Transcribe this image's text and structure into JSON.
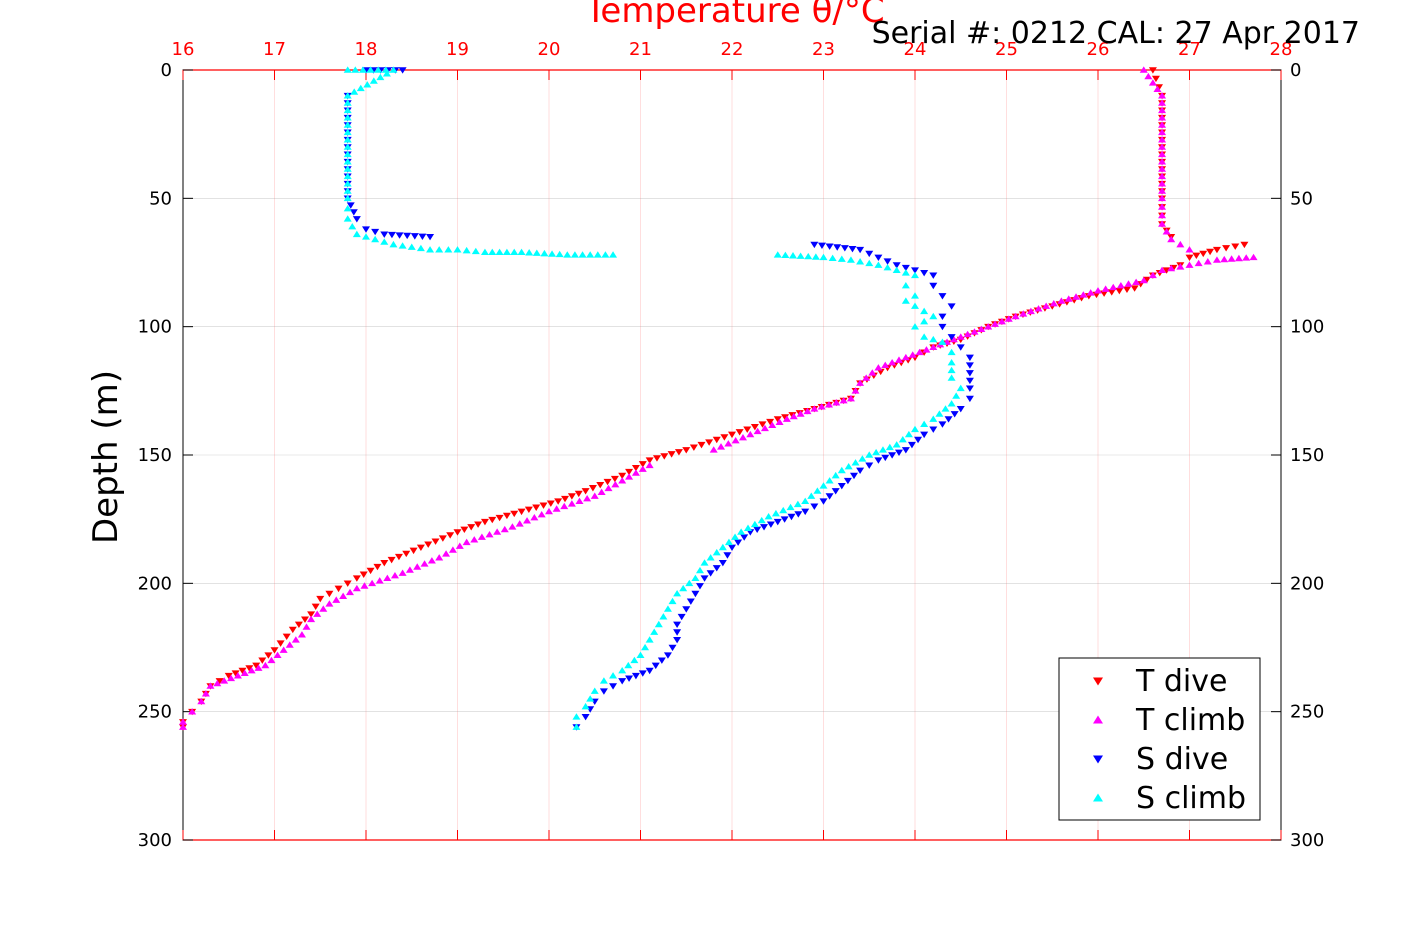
{
  "chart_data": {
    "type": "scatter",
    "title": "Temperature θ/°C",
    "serial_label": "Serial #: 0212  CAL: 27 Apr 2017",
    "ylabel": "Depth (m)",
    "xlabel": "",
    "xlim": [
      16,
      28
    ],
    "ylim": [
      0,
      300
    ],
    "y_reversed": true,
    "x_ticks": [
      16,
      17,
      18,
      19,
      20,
      21,
      22,
      23,
      24,
      25,
      26,
      27,
      28
    ],
    "y_ticks": [
      0,
      50,
      100,
      150,
      200,
      250,
      300
    ],
    "grid": true,
    "legend_position": "bottom-right",
    "series": [
      {
        "name": "T dive",
        "color": "#ff0000",
        "marker": "triangle-down",
        "points": [
          [
            26.6,
            0
          ],
          [
            26.7,
            10
          ],
          [
            26.7,
            30
          ],
          [
            26.7,
            50
          ],
          [
            26.7,
            60
          ],
          [
            26.8,
            65
          ],
          [
            27.6,
            68
          ],
          [
            27.3,
            70
          ],
          [
            27.0,
            73
          ],
          [
            26.9,
            76
          ],
          [
            26.6,
            80
          ],
          [
            26.4,
            85
          ],
          [
            25.9,
            88
          ],
          [
            25.5,
            92
          ],
          [
            25.1,
            96
          ],
          [
            24.8,
            100
          ],
          [
            24.5,
            105
          ],
          [
            24.2,
            108
          ],
          [
            24.0,
            112
          ],
          [
            23.7,
            116
          ],
          [
            23.4,
            122
          ],
          [
            23.3,
            128
          ],
          [
            22.9,
            132
          ],
          [
            22.5,
            136
          ],
          [
            22.0,
            142
          ],
          [
            21.5,
            148
          ],
          [
            21.1,
            152
          ],
          [
            20.8,
            158
          ],
          [
            20.4,
            164
          ],
          [
            20.1,
            168
          ],
          [
            19.7,
            172
          ],
          [
            19.3,
            176
          ],
          [
            19.0,
            180
          ],
          [
            18.6,
            186
          ],
          [
            18.2,
            192
          ],
          [
            17.9,
            198
          ],
          [
            17.7,
            202
          ],
          [
            17.5,
            206
          ],
          [
            17.4,
            212
          ],
          [
            17.2,
            218
          ],
          [
            17.0,
            226
          ],
          [
            16.8,
            232
          ],
          [
            16.5,
            236
          ],
          [
            16.3,
            240
          ],
          [
            16.2,
            246
          ],
          [
            16.1,
            250
          ],
          [
            16.0,
            254
          ],
          [
            16.0,
            256
          ]
        ]
      },
      {
        "name": "T climb",
        "color": "#ff00ff",
        "marker": "triangle-up",
        "points": [
          [
            26.5,
            0
          ],
          [
            26.7,
            10
          ],
          [
            26.7,
            30
          ],
          [
            26.7,
            50
          ],
          [
            26.7,
            60
          ],
          [
            26.8,
            66
          ],
          [
            27.0,
            70
          ],
          [
            27.7,
            73
          ],
          [
            27.3,
            74
          ],
          [
            27.0,
            76
          ],
          [
            26.7,
            78
          ],
          [
            26.5,
            82
          ],
          [
            26.0,
            86
          ],
          [
            25.6,
            90
          ],
          [
            25.1,
            96
          ],
          [
            24.8,
            100
          ],
          [
            24.5,
            104
          ],
          [
            24.2,
            108
          ],
          [
            23.9,
            112
          ],
          [
            23.6,
            116
          ],
          [
            23.4,
            122
          ],
          [
            23.3,
            128
          ],
          [
            22.9,
            132
          ],
          [
            22.6,
            136
          ],
          [
            22.2,
            142
          ],
          [
            21.8,
            148
          ],
          [
            21.1,
            154
          ],
          [
            20.8,
            160
          ],
          [
            20.5,
            166
          ],
          [
            20.0,
            172
          ],
          [
            19.6,
            178
          ],
          [
            19.1,
            184
          ],
          [
            18.8,
            190
          ],
          [
            18.4,
            196
          ],
          [
            17.9,
            202
          ],
          [
            17.6,
            208
          ],
          [
            17.4,
            214
          ],
          [
            17.3,
            220
          ],
          [
            17.1,
            226
          ],
          [
            16.9,
            232
          ],
          [
            16.6,
            236
          ],
          [
            16.3,
            240
          ],
          [
            16.2,
            246
          ],
          [
            16.1,
            250
          ],
          [
            16.0,
            254
          ],
          [
            16.0,
            256
          ]
        ]
      },
      {
        "name": "S dive",
        "color": "#0000ff",
        "marker": "triangle-down",
        "points": [
          [
            18.0,
            0
          ],
          [
            18.4,
            0
          ],
          [
            17.8,
            10
          ],
          [
            17.8,
            30
          ],
          [
            17.8,
            50
          ],
          [
            17.9,
            58
          ],
          [
            18.0,
            62
          ],
          [
            18.2,
            64
          ],
          [
            18.7,
            65
          ],
          [
            22.9,
            68
          ],
          [
            23.4,
            70
          ],
          [
            23.6,
            73
          ],
          [
            23.8,
            76
          ],
          [
            24.0,
            78
          ],
          [
            24.2,
            80
          ],
          [
            24.2,
            84
          ],
          [
            24.3,
            88
          ],
          [
            24.4,
            92
          ],
          [
            24.3,
            96
          ],
          [
            24.3,
            100
          ],
          [
            24.4,
            104
          ],
          [
            24.5,
            108
          ],
          [
            24.6,
            112
          ],
          [
            24.6,
            118
          ],
          [
            24.6,
            124
          ],
          [
            24.6,
            128
          ],
          [
            24.5,
            132
          ],
          [
            24.3,
            138
          ],
          [
            24.1,
            142
          ],
          [
            23.9,
            148
          ],
          [
            23.6,
            152
          ],
          [
            23.4,
            156
          ],
          [
            23.2,
            162
          ],
          [
            23.0,
            168
          ],
          [
            22.8,
            172
          ],
          [
            22.5,
            176
          ],
          [
            22.2,
            180
          ],
          [
            22.0,
            186
          ],
          [
            21.9,
            192
          ],
          [
            21.7,
            198
          ],
          [
            21.6,
            204
          ],
          [
            21.5,
            210
          ],
          [
            21.4,
            216
          ],
          [
            21.4,
            222
          ],
          [
            21.3,
            228
          ],
          [
            21.1,
            234
          ],
          [
            20.8,
            238
          ],
          [
            20.6,
            242
          ],
          [
            20.5,
            246
          ],
          [
            20.4,
            252
          ],
          [
            20.3,
            256
          ]
        ]
      },
      {
        "name": "S climb",
        "color": "#00ffff",
        "marker": "triangle-up",
        "points": [
          [
            17.8,
            0
          ],
          [
            18.3,
            0
          ],
          [
            17.8,
            10
          ],
          [
            17.8,
            30
          ],
          [
            17.8,
            50
          ],
          [
            17.8,
            58
          ],
          [
            17.9,
            64
          ],
          [
            18.1,
            66
          ],
          [
            18.3,
            68
          ],
          [
            18.5,
            69
          ],
          [
            18.7,
            70
          ],
          [
            19.0,
            70
          ],
          [
            19.3,
            71
          ],
          [
            19.7,
            71
          ],
          [
            20.2,
            72
          ],
          [
            20.7,
            72
          ],
          [
            22.5,
            72
          ],
          [
            23.0,
            73
          ],
          [
            23.3,
            74
          ],
          [
            23.6,
            76
          ],
          [
            23.8,
            78
          ],
          [
            24.0,
            80
          ],
          [
            23.9,
            84
          ],
          [
            24.0,
            88
          ],
          [
            23.9,
            90
          ],
          [
            24.1,
            94
          ],
          [
            24.2,
            96
          ],
          [
            24.1,
            98
          ],
          [
            24.0,
            100
          ],
          [
            24.1,
            104
          ],
          [
            24.3,
            106
          ],
          [
            24.4,
            110
          ],
          [
            24.4,
            114
          ],
          [
            24.4,
            120
          ],
          [
            24.5,
            124
          ],
          [
            24.4,
            130
          ],
          [
            24.2,
            136
          ],
          [
            24.0,
            140
          ],
          [
            23.8,
            146
          ],
          [
            23.5,
            150
          ],
          [
            23.2,
            156
          ],
          [
            23.0,
            162
          ],
          [
            22.8,
            168
          ],
          [
            22.4,
            174
          ],
          [
            22.1,
            180
          ],
          [
            21.9,
            186
          ],
          [
            21.7,
            192
          ],
          [
            21.6,
            198
          ],
          [
            21.4,
            204
          ],
          [
            21.3,
            210
          ],
          [
            21.2,
            216
          ],
          [
            21.1,
            222
          ],
          [
            21.0,
            228
          ],
          [
            20.8,
            234
          ],
          [
            20.6,
            238
          ],
          [
            20.5,
            242
          ],
          [
            20.4,
            248
          ],
          [
            20.3,
            252
          ],
          [
            20.3,
            256
          ]
        ]
      }
    ]
  }
}
